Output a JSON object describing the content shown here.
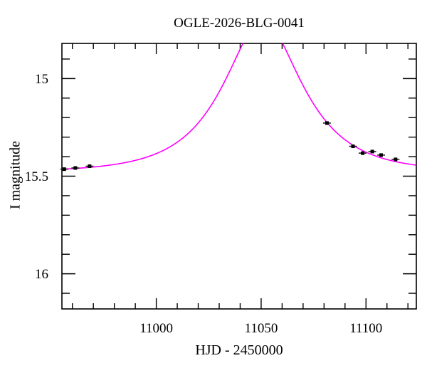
{
  "figure": {
    "background": "#ffffff"
  },
  "chart_data": {
    "type": "scatter",
    "title": "OGLE-2026-BLG-0041",
    "xlabel": "HJD - 2450000",
    "ylabel": "I magnitude",
    "xlim": [
      10955,
      11124
    ],
    "ylim": [
      14.82,
      16.18
    ],
    "y_axis_inverted": true,
    "grid": false,
    "legend": "none",
    "x_ticks_major": [
      11000,
      11050,
      11100
    ],
    "x_tick_labels": [
      "11000",
      "11050",
      "11100"
    ],
    "x_minor_step": 10,
    "y_ticks_major": [
      15.0,
      15.5,
      16.0
    ],
    "y_tick_labels": [
      "15",
      "15.5",
      "16"
    ],
    "y_minor_step": 0.1,
    "points": [
      {
        "t": 10956.1,
        "mag": 15.464,
        "err": 0.008
      },
      {
        "t": 10961.4,
        "mag": 15.458,
        "err": 0.008
      },
      {
        "t": 10968.2,
        "mag": 15.449,
        "err": 0.008
      },
      {
        "t": 11081.4,
        "mag": 15.228,
        "err": 0.008
      },
      {
        "t": 11093.8,
        "mag": 15.347,
        "err": 0.008
      },
      {
        "t": 11098.4,
        "mag": 15.382,
        "err": 0.008
      },
      {
        "t": 11103.0,
        "mag": 15.374,
        "err": 0.008
      },
      {
        "t": 11107.2,
        "mag": 15.392,
        "err": 0.008
      },
      {
        "t": 11114.1,
        "mag": 15.414,
        "err": 0.008
      }
    ],
    "model_curve": {
      "type": "paczynski",
      "t0": 11050.8,
      "tE": 31.0,
      "u0": 0.54,
      "I_base": 15.48,
      "peak_mag": 14.7,
      "note": "curve exceeds plotted magnitude range near peak"
    },
    "colors": {
      "curve": "#ff00ff",
      "marker": "#000000",
      "error_bar": "#222222",
      "frame": "#000000",
      "background": "#ffffff"
    }
  }
}
